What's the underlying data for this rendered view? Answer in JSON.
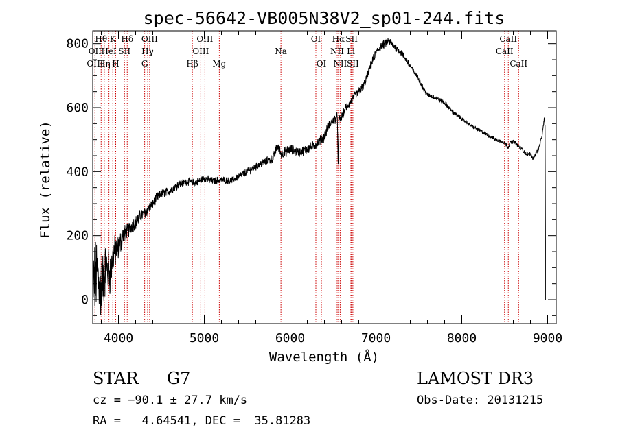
{
  "chart_data": {
    "type": "line",
    "title": "spec-56642-VB005N38V2_sp01-244.fits",
    "xlabel": "Wavelength (Å)",
    "ylabel": "Flux (relative)",
    "xlim": [
      3700,
      9100
    ],
    "ylim": [
      -75,
      840
    ],
    "x_ticks": [
      4000,
      5000,
      6000,
      7000,
      8000,
      9000
    ],
    "y_ticks": [
      0,
      200,
      400,
      600,
      800
    ],
    "grid": false,
    "series": [
      {
        "name": "flux",
        "anchors_x": [
          3700,
          3750,
          3800,
          3850,
          3900,
          3950,
          4000,
          4050,
          4100,
          4150,
          4200,
          4250,
          4300,
          4350,
          4400,
          4450,
          4500,
          4600,
          4700,
          4800,
          4900,
          5000,
          5100,
          5200,
          5300,
          5400,
          5500,
          5600,
          5700,
          5800,
          5850,
          5900,
          6000,
          6100,
          6200,
          6300,
          6400,
          6450,
          6500,
          6550,
          6560,
          6570,
          6600,
          6650,
          6700,
          6750,
          6800,
          6850,
          6900,
          6950,
          7000,
          7050,
          7100,
          7150,
          7200,
          7300,
          7400,
          7500,
          7550,
          7600,
          7700,
          7800,
          7900,
          8000,
          8100,
          8200,
          8300,
          8400,
          8450,
          8500,
          8540,
          8560,
          8600,
          8700,
          8750,
          8800,
          8830,
          8850,
          8900,
          8940,
          8960,
          8970,
          8975
        ],
        "anchors_y": [
          50,
          80,
          30,
          100,
          80,
          150,
          160,
          200,
          210,
          230,
          240,
          260,
          270,
          285,
          300,
          320,
          330,
          340,
          360,
          370,
          365,
          380,
          370,
          375,
          370,
          385,
          400,
          415,
          430,
          440,
          480,
          455,
          470,
          460,
          470,
          485,
          510,
          545,
          560,
          570,
          420,
          560,
          570,
          600,
          615,
          635,
          650,
          665,
          700,
          740,
          770,
          790,
          800,
          810,
          795,
          770,
          730,
          690,
          660,
          640,
          630,
          615,
          585,
          565,
          545,
          530,
          515,
          500,
          495,
          490,
          475,
          490,
          495,
          470,
          455,
          455,
          440,
          450,
          475,
          520,
          565,
          545,
          180
        ],
        "noise_amplitude": [
          110,
          100,
          90,
          70,
          60,
          45,
          35,
          30,
          22,
          20,
          18,
          18,
          16,
          15,
          14,
          13,
          12,
          12,
          11,
          10,
          10,
          10,
          10,
          10,
          9,
          9,
          10,
          10,
          11,
          12,
          14,
          14,
          13,
          13,
          13,
          13,
          13,
          13,
          13,
          13,
          13,
          13,
          12,
          12,
          12,
          12,
          12,
          12,
          12,
          12,
          12,
          12,
          12,
          10,
          10,
          9,
          8,
          7,
          7,
          6,
          6,
          6,
          6,
          5,
          5,
          5,
          5,
          5,
          5,
          5,
          5,
          5,
          5,
          5,
          5,
          5,
          5,
          5,
          5,
          5,
          5,
          5,
          5
        ]
      }
    ],
    "spectral_lines": [
      {
        "label": "Hθ",
        "x": 3798,
        "row": 1
      },
      {
        "label": "OII",
        "x": 3727,
        "row": 2
      },
      {
        "label": "OIII",
        "x": 3727,
        "row": 3
      },
      {
        "label": "Hη",
        "x": 3835,
        "row": 3
      },
      {
        "label": "HeI",
        "x": 3889,
        "row": 2
      },
      {
        "label": "K",
        "x": 3934,
        "row": 1
      },
      {
        "label": "H",
        "x": 3968,
        "row": 3
      },
      {
        "label": "SII",
        "x": 4070,
        "row": 2
      },
      {
        "label": "Hδ",
        "x": 4102,
        "row": 1
      },
      {
        "label": "OIII",
        "x": 4363,
        "row": 1
      },
      {
        "label": "Hγ",
        "x": 4340,
        "row": 2
      },
      {
        "label": "G",
        "x": 4305,
        "row": 3
      },
      {
        "label": "Hβ",
        "x": 4861,
        "row": 3
      },
      {
        "label": "OIII",
        "x": 5007,
        "row": 1
      },
      {
        "label": "OIII",
        "x": 4959,
        "row": 2
      },
      {
        "label": "Mg",
        "x": 5175,
        "row": 3
      },
      {
        "label": "Na",
        "x": 5893,
        "row": 2
      },
      {
        "label": "OI",
        "x": 6300,
        "row": 1
      },
      {
        "label": "OI",
        "x": 6364,
        "row": 3
      },
      {
        "label": "Hα",
        "x": 6563,
        "row": 1
      },
      {
        "label": "NII",
        "x": 6548,
        "row": 2
      },
      {
        "label": "NII",
        "x": 6583,
        "row": 3
      },
      {
        "label": "Li",
        "x": 6708,
        "row": 2
      },
      {
        "label": "SII",
        "x": 6717,
        "row": 1
      },
      {
        "label": "SII",
        "x": 6731,
        "row": 3
      },
      {
        "label": "CaII",
        "x": 8542,
        "row": 1
      },
      {
        "label": "CaII",
        "x": 8498,
        "row": 2
      },
      {
        "label": "CaII",
        "x": 8662,
        "row": 3
      }
    ]
  },
  "info": {
    "object_class": "STAR",
    "subclass": "G7",
    "survey": "LAMOST DR3",
    "redshift": "cz = −90.1 ± 27.7 km/s",
    "obs_date": "Obs-Date: 20131215",
    "coords": "RA =   4.64541, DEC =  35.81283"
  },
  "colors": {
    "axis": "#000000",
    "line": "#000000",
    "marker": "#cc0000"
  }
}
